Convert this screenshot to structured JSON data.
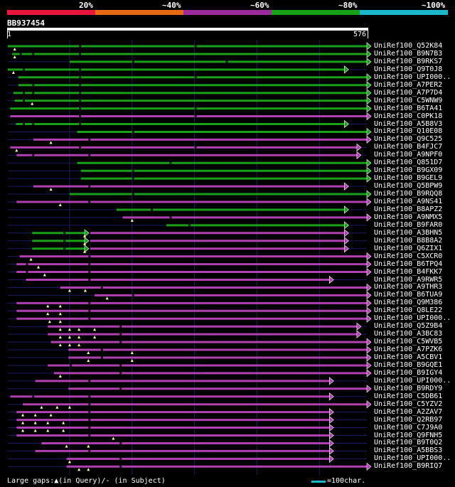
{
  "legend": [
    {
      "label": "20%",
      "color": "#e8173b"
    },
    {
      "label": "~40%",
      "color": "#e66a14"
    },
    {
      "label": "~60%",
      "color": "#9b2a9a"
    },
    {
      "label": "~80%",
      "color": "#18a017"
    },
    {
      "label": "~100%",
      "color": "#19b7c9"
    }
  ],
  "query_id": "BB937454",
  "ruler_start": "1",
  "ruler_end": "576",
  "colors": {
    "green": "#18a017",
    "purple": "#b040b0",
    "grid": "#1b1b60"
  },
  "hits": [
    {
      "name": "UniRef100_Q52K84",
      "c": "g",
      "s": 1,
      "e": 576,
      "gq": [
        12
      ],
      "gs": [
        115,
        300
      ]
    },
    {
      "name": "UniRef100_B9N7B3",
      "c": "g",
      "s": 8,
      "e": 576,
      "gq": [
        12
      ],
      "gs": [
        20,
        40,
        115
      ]
    },
    {
      "name": "UniRef100_B9RKS7",
      "c": "g",
      "s": 100,
      "e": 576,
      "gq": [],
      "gs": [
        200,
        350
      ]
    },
    {
      "name": "UniRef100_Q9T0J8",
      "c": "g",
      "s": 1,
      "e": 540,
      "gq": [
        10
      ],
      "gs": [
        25,
        115
      ]
    },
    {
      "name": "UniRef100_UPI000..",
      "c": "g",
      "s": 18,
      "e": 576,
      "gq": [],
      "gs": [
        115,
        300
      ]
    },
    {
      "name": "UniRef100_A7PER2",
      "c": "g",
      "s": 18,
      "e": 576,
      "gq": [],
      "gs": [
        40,
        115
      ]
    },
    {
      "name": "UniRef100_A7P7D4",
      "c": "g",
      "s": 10,
      "e": 576,
      "gq": [],
      "gs": [
        25,
        40,
        115
      ]
    },
    {
      "name": "UniRef100_C5WNW9",
      "c": "g",
      "s": 12,
      "e": 576,
      "gq": [
        40
      ],
      "gs": [
        25,
        115
      ]
    },
    {
      "name": "UniRef100_B6TA41",
      "c": "g",
      "s": 5,
      "e": 576,
      "gq": [],
      "gs": [
        115,
        300
      ]
    },
    {
      "name": "UniRef100_C0PK18",
      "c": "p",
      "s": 5,
      "e": 576,
      "gq": [],
      "gs": [
        115,
        300
      ]
    },
    {
      "name": "UniRef100_A5B8V3",
      "c": "g",
      "s": 14,
      "e": 540,
      "gq": [],
      "gs": [
        25,
        40,
        115
      ]
    },
    {
      "name": "UniRef100_Q10E08",
      "c": "g",
      "s": 112,
      "e": 576,
      "gq": [],
      "gs": [
        200
      ]
    },
    {
      "name": "UniRef100_Q9C525",
      "c": "p",
      "s": 42,
      "e": 576,
      "gq": [
        70
      ],
      "gs": [
        130
      ]
    },
    {
      "name": "UniRef100_B4FJC7",
      "c": "p",
      "s": 5,
      "e": 560,
      "gq": [
        15
      ],
      "gs": [
        115,
        300
      ]
    },
    {
      "name": "UniRef100_A9NPF0",
      "c": "p",
      "s": 15,
      "e": 560,
      "gq": [],
      "gs": [
        40,
        130
      ]
    },
    {
      "name": "UniRef100_Q851D7",
      "c": "g",
      "s": 112,
      "e": 576,
      "gq": [],
      "gs": [
        260
      ]
    },
    {
      "name": "UniRef100_B9GX09",
      "c": "g",
      "s": 118,
      "e": 576,
      "gq": [],
      "gs": [
        200
      ]
    },
    {
      "name": "UniRef100_B9GEL9",
      "c": "g",
      "s": 118,
      "e": 576,
      "gq": [],
      "gs": [
        200
      ]
    },
    {
      "name": "UniRef100_Q5BPW9",
      "c": "p",
      "s": 42,
      "e": 540,
      "gq": [
        70
      ],
      "gs": [
        130
      ]
    },
    {
      "name": "UniRef100_B9RQQ8",
      "c": "g",
      "s": 100,
      "e": 576,
      "gq": [],
      "gs": [
        200
      ]
    },
    {
      "name": "UniRef100_A9NS41",
      "c": "p",
      "s": 15,
      "e": 576,
      "gq": [
        85
      ],
      "gs": [
        130
      ]
    },
    {
      "name": "UniRef100_B8APZ2",
      "c": "g",
      "s": 175,
      "e": 540,
      "gq": [],
      "gs": [
        230
      ]
    },
    {
      "name": "UniRef100_A9NMX5",
      "c": "p",
      "s": 185,
      "e": 576,
      "gq": [
        200
      ],
      "gs": [
        260
      ]
    },
    {
      "name": "UniRef100_B9FAR0",
      "c": "g",
      "s": 255,
      "e": 540,
      "gq": [],
      "gs": [
        290
      ]
    },
    {
      "name": "UniRef100_A3BHN5",
      "c": "g2",
      "s": 40,
      "e": 540,
      "gq": [
        124
      ],
      "gs": [
        90
      ]
    },
    {
      "name": "UniRef100_B8B8A2",
      "c": "g2",
      "s": 40,
      "e": 540,
      "gq": [
        124
      ],
      "gs": [
        90
      ]
    },
    {
      "name": "UniRef100_Q6ZIX1",
      "c": "g2",
      "s": 40,
      "e": 540,
      "gq": [
        124
      ],
      "gs": [
        90
      ]
    },
    {
      "name": "UniRef100_C5XCR0",
      "c": "p",
      "s": 20,
      "e": 576,
      "gq": [
        38
      ],
      "gs": [
        130
      ]
    },
    {
      "name": "UniRef100_B6TPQ4",
      "c": "p",
      "s": 15,
      "e": 576,
      "gq": [
        50
      ],
      "gs": [
        30,
        130
      ]
    },
    {
      "name": "UniRef100_B4FKK7",
      "c": "p",
      "s": 15,
      "e": 576,
      "gq": [
        60
      ],
      "gs": [
        30,
        130
      ]
    },
    {
      "name": "UniRef100_A9RWR5",
      "c": "p",
      "s": 30,
      "e": 516,
      "gq": [],
      "gs": [
        130
      ]
    },
    {
      "name": "UniRef100_A9THR3",
      "c": "p",
      "s": 85,
      "e": 576,
      "gq": [
        100,
        125
      ],
      "gs": [
        150
      ]
    },
    {
      "name": "UniRef100_B6TUA9",
      "c": "p",
      "s": 140,
      "e": 576,
      "gq": [
        160
      ],
      "gs": [
        200
      ]
    },
    {
      "name": "UniRef100_Q9M386",
      "c": "p",
      "s": 15,
      "e": 576,
      "gq": [
        65,
        85
      ],
      "gs": [
        130
      ]
    },
    {
      "name": "UniRef100_Q8LE22",
      "c": "p",
      "s": 15,
      "e": 576,
      "gq": [
        65,
        85
      ],
      "gs": [
        130
      ]
    },
    {
      "name": "UniRef100_UPI000..",
      "c": "p",
      "s": 15,
      "e": 576,
      "gq": [
        68,
        85
      ],
      "gs": [
        130
      ]
    },
    {
      "name": "UniRef100_Q5Z9B4",
      "c": "p",
      "s": 65,
      "e": 560,
      "gq": [
        85,
        100,
        115,
        140
      ],
      "gs": [
        180
      ]
    },
    {
      "name": "UniRef100_A3BC83",
      "c": "p",
      "s": 65,
      "e": 560,
      "gq": [
        85,
        100,
        115,
        140
      ],
      "gs": [
        180
      ]
    },
    {
      "name": "UniRef100_C5WVB5",
      "c": "p",
      "s": 70,
      "e": 576,
      "gq": [
        85,
        100,
        115
      ],
      "gs": [
        180
      ]
    },
    {
      "name": "UniRef100_A7PZK6",
      "c": "p",
      "s": 98,
      "e": 576,
      "gq": [
        130,
        200
      ],
      "gs": [
        150
      ]
    },
    {
      "name": "UniRef100_A5CBV1",
      "c": "p",
      "s": 98,
      "e": 576,
      "gq": [
        130,
        200
      ],
      "gs": [
        150
      ]
    },
    {
      "name": "UniRef100_B9GQE1",
      "c": "p",
      "s": 65,
      "e": 576,
      "gq": [],
      "gs": [
        100,
        180
      ]
    },
    {
      "name": "UniRef100_B9IGY4",
      "c": "p",
      "s": 75,
      "e": 576,
      "gq": [
        85
      ],
      "gs": [
        180
      ]
    },
    {
      "name": "UniRef100_UPI000..",
      "c": "p",
      "s": 45,
      "e": 516,
      "gq": [],
      "gs": [
        130
      ]
    },
    {
      "name": "UniRef100_B9RDY9",
      "c": "p",
      "s": 98,
      "e": 576,
      "gq": [],
      "gs": [
        180
      ]
    },
    {
      "name": "UniRef100_C5DB61",
      "c": "p",
      "s": 5,
      "e": 516,
      "gq": [],
      "gs": [
        40,
        130
      ]
    },
    {
      "name": "UniRef100_C5YZV2",
      "c": "p",
      "s": 25,
      "e": 576,
      "gq": [
        55,
        80,
        100
      ],
      "gs": [
        130
      ]
    },
    {
      "name": "UniRef100_A2ZAV7",
      "c": "p",
      "s": 15,
      "e": 516,
      "gq": [
        25,
        45,
        70
      ],
      "gs": [
        130
      ]
    },
    {
      "name": "UniRef100_Q2RB97",
      "c": "p",
      "s": 15,
      "e": 516,
      "gq": [
        25,
        45,
        65,
        90
      ],
      "gs": [
        130
      ]
    },
    {
      "name": "UniRef100_C7J9A0",
      "c": "p",
      "s": 15,
      "e": 516,
      "gq": [
        25,
        45,
        65,
        90
      ],
      "gs": [
        130
      ]
    },
    {
      "name": "UniRef100_Q9FNH5",
      "c": "p",
      "s": 15,
      "e": 516,
      "gq": [
        170
      ],
      "gs": [
        130
      ]
    },
    {
      "name": "UniRef100_B9T0Q2",
      "c": "p",
      "s": 55,
      "e": 516,
      "gq": [
        95,
        130
      ],
      "gs": [
        180
      ]
    },
    {
      "name": "UniRef100_A5BBS3",
      "c": "p",
      "s": 45,
      "e": 516,
      "gq": [],
      "gs": [
        130
      ]
    },
    {
      "name": "UniRef100_UPI000..",
      "c": "p",
      "s": 95,
      "e": 516,
      "gq": [
        100
      ],
      "gs": [
        180
      ]
    },
    {
      "name": "UniRef100_B9RIQ7",
      "c": "p",
      "s": 95,
      "e": 576,
      "gq": [
        115,
        130
      ],
      "gs": [
        180
      ]
    }
  ],
  "footer_text": "Large gaps:▲(in Query)/- (in Subject)",
  "scale_text": "=100char."
}
